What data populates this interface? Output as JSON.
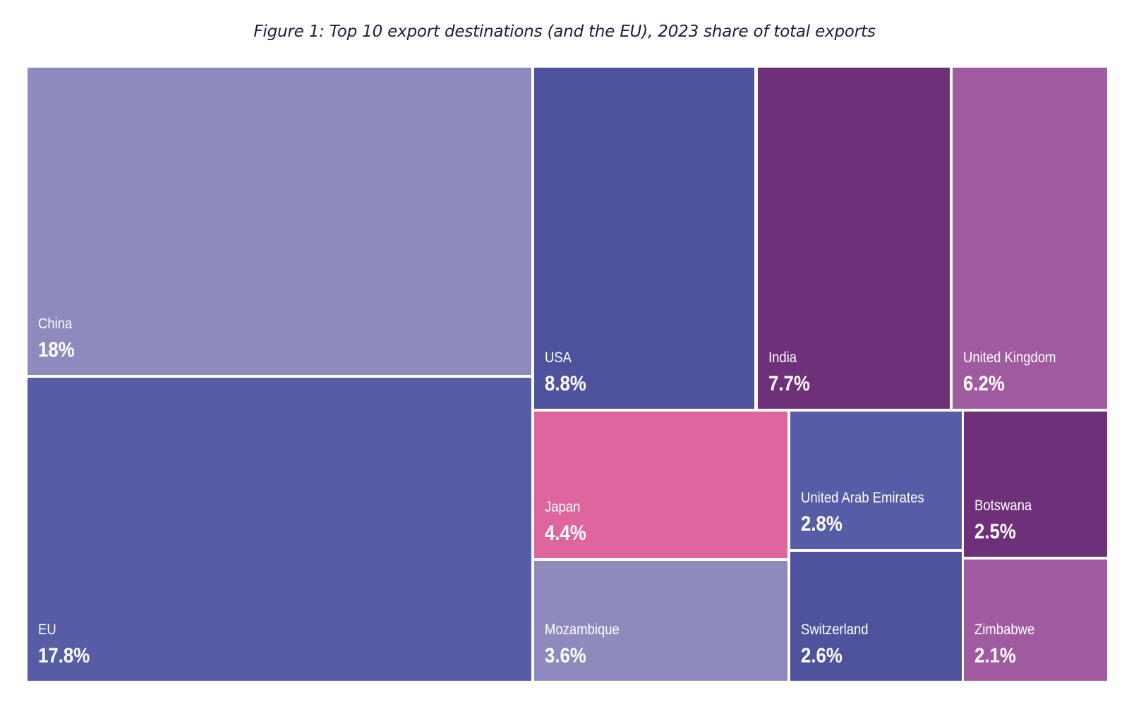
{
  "title": "Figure 1: Top 10 export destinations (and the EU), 2023 share of total exports",
  "chart_data": {
    "type": "treemap",
    "title": "Figure 1: Top 10 export destinations (and the EU), 2023 share of total exports",
    "unit": "%",
    "items": [
      {
        "name": "China",
        "value": 18,
        "label": "18%",
        "color": "#8f8abd"
      },
      {
        "name": "EU",
        "value": 17.8,
        "label": "17.8%",
        "color": "#565ca6"
      },
      {
        "name": "USA",
        "value": 8.8,
        "label": "8.8%",
        "color": "#4e529c"
      },
      {
        "name": "India",
        "value": 7.7,
        "label": "7.7%",
        "color": "#6e3079"
      },
      {
        "name": "United Kingdom",
        "value": 6.2,
        "label": "6.2%",
        "color": "#a05a9f"
      },
      {
        "name": "Japan",
        "value": 4.4,
        "label": "4.4%",
        "color": "#df659e"
      },
      {
        "name": "Mozambique",
        "value": 3.6,
        "label": "3.6%",
        "color": "#8f8abd"
      },
      {
        "name": "United Arab Emirates",
        "value": 2.8,
        "label": "2.8%",
        "color": "#565ca6"
      },
      {
        "name": "Switzerland",
        "value": 2.6,
        "label": "2.6%",
        "color": "#4e529c"
      },
      {
        "name": "Botswana",
        "value": 2.5,
        "label": "2.5%",
        "color": "#6e3079"
      },
      {
        "name": "Zimbabwe",
        "value": 2.1,
        "label": "2.1%",
        "color": "#a05a9f"
      }
    ]
  }
}
